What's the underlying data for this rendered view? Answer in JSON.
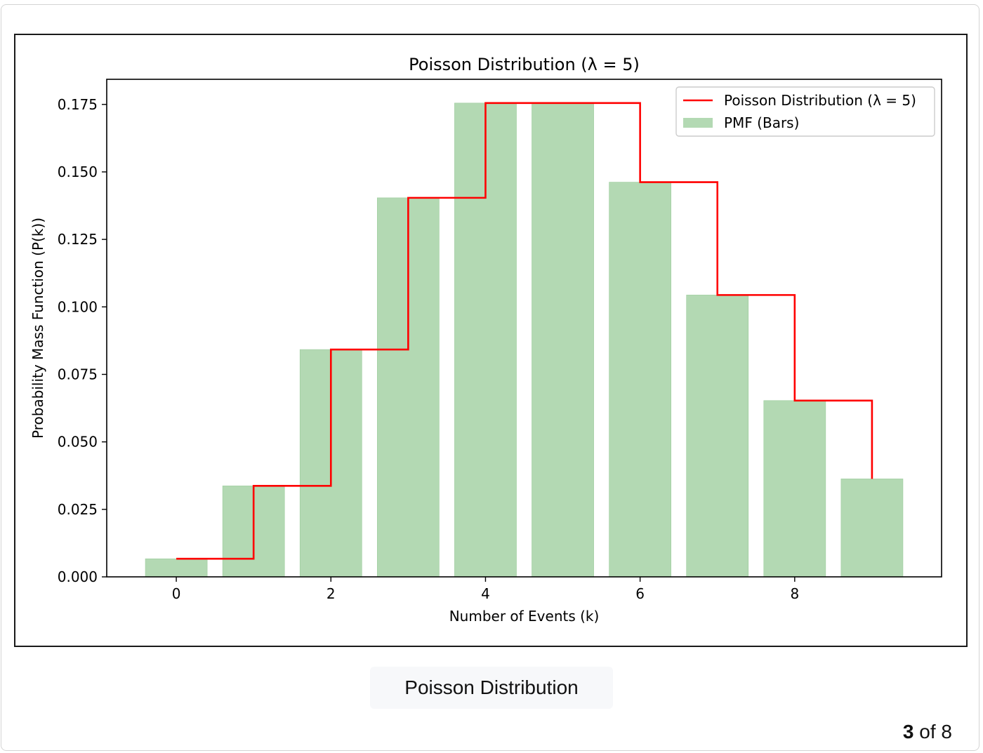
{
  "caption": "Poisson Distribution",
  "pager": {
    "current": "3",
    "separator": " of ",
    "total": "8"
  },
  "colors": {
    "bars": "#b3d9b3",
    "bar_edge": "#9ccc9c",
    "line": "#ff0000"
  },
  "chart_data": {
    "type": "bar",
    "title": "Poisson Distribution (λ = 5)",
    "xlabel": "Number of Events (k)",
    "ylabel": "Probability Mass Function (P(k))",
    "x": [
      0,
      1,
      2,
      3,
      4,
      5,
      6,
      7,
      8,
      9
    ],
    "values": [
      0.0067,
      0.0337,
      0.0842,
      0.1404,
      0.1755,
      0.1755,
      0.1462,
      0.1044,
      0.0653,
      0.0363
    ],
    "xlim": [
      -0.9,
      9.9
    ],
    "ylim": [
      0,
      0.1843
    ],
    "xticks": [
      "0",
      "2",
      "4",
      "6",
      "8"
    ],
    "yticks": [
      "0.000",
      "0.025",
      "0.050",
      "0.075",
      "0.100",
      "0.125",
      "0.150",
      "0.175"
    ],
    "series": [
      {
        "name": "Poisson Distribution (λ = 5)",
        "style": "step-post line",
        "color": "#ff0000"
      },
      {
        "name": "PMF (Bars)",
        "style": "bar",
        "color": "#b3d9b3"
      }
    ],
    "legend": "top-right",
    "grid": false
  }
}
